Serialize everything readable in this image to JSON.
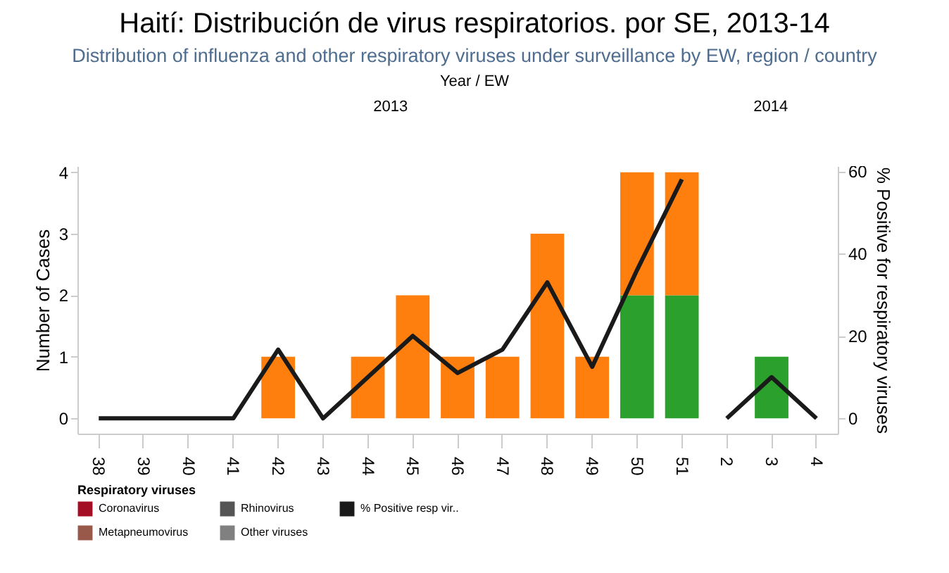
{
  "chart_data": {
    "type": "bar",
    "title": "Haití: Distribución de virus respiratorios. por SE, 2013-14",
    "subtitle": "Distribution of influenza and other respiratory viruses under surveillance by EW, region / country",
    "xlabel": "Year  /  EW",
    "ylabel": "Number of Cases",
    "y2label": "% Positive for respiratory viruses",
    "legend_title": "Respiratory viruses",
    "annotations": [
      "2013",
      "2014"
    ],
    "categories": [
      "38",
      "39",
      "40",
      "41",
      "42",
      "43",
      "44",
      "45",
      "46",
      "47",
      "48",
      "49",
      "50",
      "51",
      "2",
      "3",
      "4"
    ],
    "stacked": true,
    "legend": "bottom",
    "grid": false,
    "ylim": [
      -0.25,
      4.1
    ],
    "yticks": [
      0,
      1,
      2,
      3,
      4
    ],
    "y2lim": [
      -3.7,
      61.2
    ],
    "y2ticks": [
      0,
      20,
      40,
      60
    ],
    "series": [
      {
        "color": "#2ca02c",
        "values": [
          0,
          0,
          0,
          0,
          0,
          0,
          0,
          0,
          0,
          0,
          0,
          0,
          2,
          2,
          0,
          1,
          0
        ]
      },
      {
        "color": "#ff7f0e",
        "values": [
          0,
          0,
          0,
          0,
          1,
          0,
          1,
          2,
          1,
          1,
          3,
          1,
          2,
          2,
          0,
          0,
          0
        ]
      },
      {
        "name": "Coronavirus",
        "color": "#a50f26",
        "values": [
          null,
          null,
          null,
          null,
          null,
          null,
          null,
          null,
          null,
          null,
          null,
          null,
          null,
          null,
          null,
          null,
          null
        ]
      },
      {
        "name": "Rhinovirus",
        "color": "#555555",
        "values": [
          null,
          null,
          null,
          null,
          null,
          null,
          null,
          null,
          null,
          null,
          null,
          null,
          null,
          null,
          null,
          null,
          null
        ]
      },
      {
        "name": "% Positive resp vir..",
        "type": "line",
        "axis": "y2",
        "color": "#1a1a1a",
        "values": [
          0,
          0,
          0,
          0,
          16.7,
          0,
          10,
          20,
          11,
          16.7,
          33,
          12.5,
          36,
          58,
          0,
          10,
          0
        ]
      },
      {
        "name": "Metapneumovirus",
        "color": "#99594a",
        "values": [
          null,
          null,
          null,
          null,
          null,
          null,
          null,
          null,
          null,
          null,
          null,
          null,
          null,
          null,
          null,
          null,
          null
        ]
      },
      {
        "name": "Other viruses",
        "color": "#808080",
        "values": [
          null,
          null,
          null,
          null,
          null,
          null,
          null,
          null,
          null,
          null,
          null,
          null,
          null,
          null,
          null,
          null,
          null
        ]
      }
    ]
  }
}
